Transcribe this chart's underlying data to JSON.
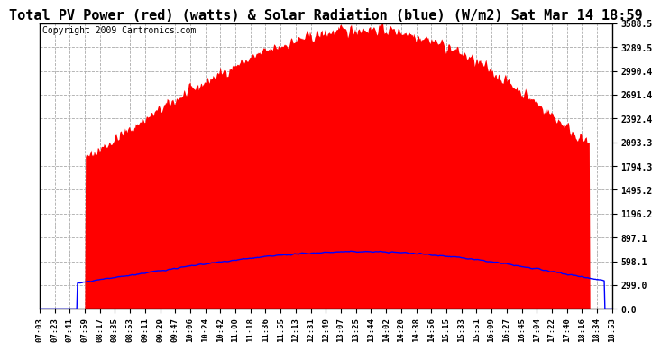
{
  "title": "Total PV Power (red) (watts) & Solar Radiation (blue) (W/m2) Sat Mar 14 18:59",
  "copyright": "Copyright 2009 Cartronics.com",
  "background_color": "#ffffff",
  "yticks": [
    0.0,
    299.0,
    598.1,
    897.1,
    1196.2,
    1495.2,
    1794.3,
    2093.3,
    2392.4,
    2691.4,
    2990.4,
    3289.5,
    3588.5
  ],
  "ymax": 3588.5,
  "time_labels": [
    "07:03",
    "07:23",
    "07:41",
    "07:59",
    "08:17",
    "08:35",
    "08:53",
    "09:11",
    "09:29",
    "09:47",
    "10:06",
    "10:24",
    "10:42",
    "11:00",
    "11:18",
    "11:36",
    "11:55",
    "12:13",
    "12:31",
    "12:49",
    "13:07",
    "13:25",
    "13:44",
    "14:02",
    "14:20",
    "14:38",
    "14:56",
    "15:15",
    "15:33",
    "15:51",
    "16:09",
    "16:27",
    "16:45",
    "17:04",
    "17:22",
    "17:40",
    "18:16",
    "18:34",
    "18:53"
  ],
  "pv_color": "#ff0000",
  "solar_color": "#0000ff",
  "grid_color": "#aaaaaa",
  "title_fontsize": 11,
  "tick_fontsize": 7,
  "copyright_fontsize": 7
}
